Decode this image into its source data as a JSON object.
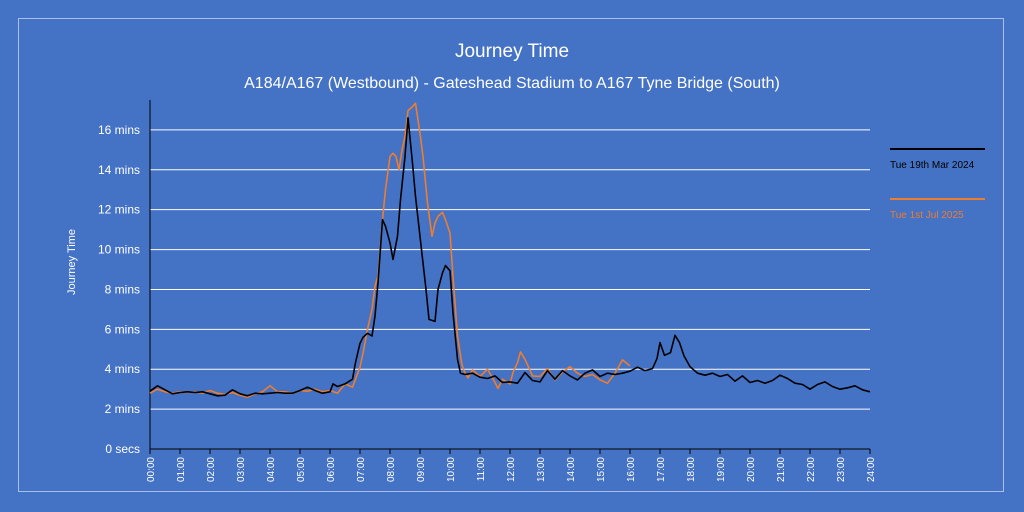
{
  "chart_data": {
    "type": "line",
    "title": "Journey Time",
    "subtitle": "A184/A167 (Westbound) - Gateshead Stadium to A167 Tyne Bridge (South)",
    "ylabel": "Journey Time",
    "xlabel": "",
    "y_unit_seconds": true,
    "ylim": [
      0,
      1050
    ],
    "xlim": [
      0,
      24
    ],
    "yticks": [
      {
        "value": 0,
        "label": "0 secs"
      },
      {
        "value": 120,
        "label": "2 mins"
      },
      {
        "value": 240,
        "label": "4 mins"
      },
      {
        "value": 360,
        "label": "6 mins"
      },
      {
        "value": 480,
        "label": "8 mins"
      },
      {
        "value": 600,
        "label": "10 mins"
      },
      {
        "value": 720,
        "label": "12 mins"
      },
      {
        "value": 840,
        "label": "14 mins"
      },
      {
        "value": 960,
        "label": "16 mins"
      }
    ],
    "xticks": [
      "00:00",
      "01:00",
      "02:00",
      "03:00",
      "04:00",
      "05:00",
      "06:00",
      "07:00",
      "08:00",
      "09:00",
      "10:00",
      "11:00",
      "12:00",
      "13:00",
      "14:00",
      "15:00",
      "16:00",
      "17:00",
      "18:00",
      "19:00",
      "20:00",
      "21:00",
      "22:00",
      "23:00",
      "24:00"
    ],
    "grid": true,
    "legend_position": "right",
    "series": [
      {
        "name": "Tue 19th Mar 2024",
        "color": "#000000",
        "points": [
          [
            0,
            174
          ],
          [
            0.25,
            190
          ],
          [
            0.5,
            178
          ],
          [
            0.75,
            166
          ],
          [
            1,
            170
          ],
          [
            1.25,
            172
          ],
          [
            1.5,
            170
          ],
          [
            1.75,
            172
          ],
          [
            2,
            166
          ],
          [
            2.25,
            160
          ],
          [
            2.5,
            162
          ],
          [
            2.75,
            178
          ],
          [
            3,
            166
          ],
          [
            3.25,
            160
          ],
          [
            3.5,
            168
          ],
          [
            3.75,
            166
          ],
          [
            4,
            168
          ],
          [
            4.25,
            170
          ],
          [
            4.5,
            168
          ],
          [
            4.75,
            168
          ],
          [
            5,
            176
          ],
          [
            5.25,
            186
          ],
          [
            5.5,
            176
          ],
          [
            5.75,
            168
          ],
          [
            6,
            172
          ],
          [
            6.1,
            196
          ],
          [
            6.25,
            188
          ],
          [
            6.5,
            196
          ],
          [
            6.75,
            210
          ],
          [
            6.85,
            260
          ],
          [
            7,
            318
          ],
          [
            7.1,
            336
          ],
          [
            7.25,
            348
          ],
          [
            7.4,
            340
          ],
          [
            7.5,
            400
          ],
          [
            7.6,
            500
          ],
          [
            7.75,
            690
          ],
          [
            7.85,
            670
          ],
          [
            8,
            620
          ],
          [
            8.1,
            570
          ],
          [
            8.25,
            640
          ],
          [
            8.35,
            750
          ],
          [
            8.5,
            880
          ],
          [
            8.6,
            996
          ],
          [
            8.75,
            860
          ],
          [
            8.85,
            760
          ],
          [
            9,
            640
          ],
          [
            9.1,
            560
          ],
          [
            9.2,
            480
          ],
          [
            9.3,
            390
          ],
          [
            9.5,
            384
          ],
          [
            9.6,
            480
          ],
          [
            9.75,
            530
          ],
          [
            9.85,
            552
          ],
          [
            10,
            536
          ],
          [
            10.1,
            410
          ],
          [
            10.25,
            270
          ],
          [
            10.35,
            228
          ],
          [
            10.5,
            224
          ],
          [
            10.75,
            228
          ],
          [
            11,
            216
          ],
          [
            11.25,
            212
          ],
          [
            11.5,
            220
          ],
          [
            11.75,
            200
          ],
          [
            12,
            202
          ],
          [
            12.25,
            198
          ],
          [
            12.5,
            230
          ],
          [
            12.75,
            206
          ],
          [
            13,
            202
          ],
          [
            13.25,
            236
          ],
          [
            13.5,
            210
          ],
          [
            13.75,
            236
          ],
          [
            14,
            220
          ],
          [
            14.25,
            208
          ],
          [
            14.5,
            228
          ],
          [
            14.75,
            238
          ],
          [
            15,
            218
          ],
          [
            15.25,
            228
          ],
          [
            15.5,
            224
          ],
          [
            15.75,
            228
          ],
          [
            16,
            234
          ],
          [
            16.25,
            246
          ],
          [
            16.5,
            236
          ],
          [
            16.75,
            242
          ],
          [
            16.9,
            272
          ],
          [
            17,
            320
          ],
          [
            17.15,
            282
          ],
          [
            17.35,
            290
          ],
          [
            17.5,
            342
          ],
          [
            17.65,
            320
          ],
          [
            17.8,
            280
          ],
          [
            18,
            248
          ],
          [
            18.25,
            228
          ],
          [
            18.5,
            222
          ],
          [
            18.75,
            228
          ],
          [
            19,
            218
          ],
          [
            19.25,
            224
          ],
          [
            19.5,
            204
          ],
          [
            19.75,
            220
          ],
          [
            20,
            200
          ],
          [
            20.25,
            206
          ],
          [
            20.5,
            198
          ],
          [
            20.75,
            206
          ],
          [
            21,
            222
          ],
          [
            21.25,
            212
          ],
          [
            21.5,
            198
          ],
          [
            21.75,
            194
          ],
          [
            22,
            180
          ],
          [
            22.25,
            194
          ],
          [
            22.5,
            202
          ],
          [
            22.75,
            188
          ],
          [
            23,
            180
          ],
          [
            23.25,
            184
          ],
          [
            23.5,
            190
          ],
          [
            23.75,
            178
          ],
          [
            24,
            172
          ]
        ]
      },
      {
        "name": "Tue 1st Jul 2025",
        "color": "#ed7d31",
        "points": [
          [
            0,
            168
          ],
          [
            0.25,
            180
          ],
          [
            0.5,
            172
          ],
          [
            0.75,
            168
          ],
          [
            1,
            172
          ],
          [
            1.25,
            170
          ],
          [
            1.5,
            172
          ],
          [
            1.75,
            168
          ],
          [
            2,
            176
          ],
          [
            2.25,
            168
          ],
          [
            2.5,
            164
          ],
          [
            2.75,
            170
          ],
          [
            3,
            162
          ],
          [
            3.25,
            156
          ],
          [
            3.5,
            166
          ],
          [
            3.75,
            172
          ],
          [
            4,
            190
          ],
          [
            4.25,
            172
          ],
          [
            4.5,
            172
          ],
          [
            4.75,
            168
          ],
          [
            5,
            176
          ],
          [
            5.25,
            174
          ],
          [
            5.5,
            180
          ],
          [
            5.75,
            172
          ],
          [
            6,
            176
          ],
          [
            6.25,
            168
          ],
          [
            6.5,
            196
          ],
          [
            6.75,
            186
          ],
          [
            7,
            246
          ],
          [
            7.1,
            288
          ],
          [
            7.25,
            360
          ],
          [
            7.4,
            420
          ],
          [
            7.5,
            490
          ],
          [
            7.6,
            520
          ],
          [
            7.75,
            690
          ],
          [
            7.85,
            780
          ],
          [
            8,
            880
          ],
          [
            8.1,
            890
          ],
          [
            8.2,
            880
          ],
          [
            8.3,
            840
          ],
          [
            8.4,
            900
          ],
          [
            8.5,
            940
          ],
          [
            8.6,
            1018
          ],
          [
            8.75,
            1030
          ],
          [
            8.85,
            1040
          ],
          [
            9,
            950
          ],
          [
            9.1,
            880
          ],
          [
            9.25,
            740
          ],
          [
            9.4,
            640
          ],
          [
            9.5,
            680
          ],
          [
            9.6,
            700
          ],
          [
            9.75,
            712
          ],
          [
            9.85,
            690
          ],
          [
            10,
            650
          ],
          [
            10.1,
            520
          ],
          [
            10.25,
            340
          ],
          [
            10.4,
            252
          ],
          [
            10.5,
            228
          ],
          [
            10.6,
            214
          ],
          [
            10.75,
            238
          ],
          [
            11,
            218
          ],
          [
            11.25,
            240
          ],
          [
            11.5,
            200
          ],
          [
            11.6,
            182
          ],
          [
            11.75,
            210
          ],
          [
            12,
            196
          ],
          [
            12.1,
            230
          ],
          [
            12.25,
            260
          ],
          [
            12.35,
            292
          ],
          [
            12.5,
            270
          ],
          [
            12.75,
            220
          ],
          [
            13,
            218
          ],
          [
            13.25,
            242
          ],
          [
            13.5,
            208
          ],
          [
            13.75,
            232
          ],
          [
            14,
            248
          ],
          [
            14.25,
            228
          ],
          [
            14.5,
            218
          ],
          [
            14.75,
            224
          ],
          [
            15,
            208
          ],
          [
            15.25,
            198
          ],
          [
            15.5,
            228
          ],
          [
            15.75,
            268
          ],
          [
            16,
            250
          ]
        ]
      }
    ]
  }
}
